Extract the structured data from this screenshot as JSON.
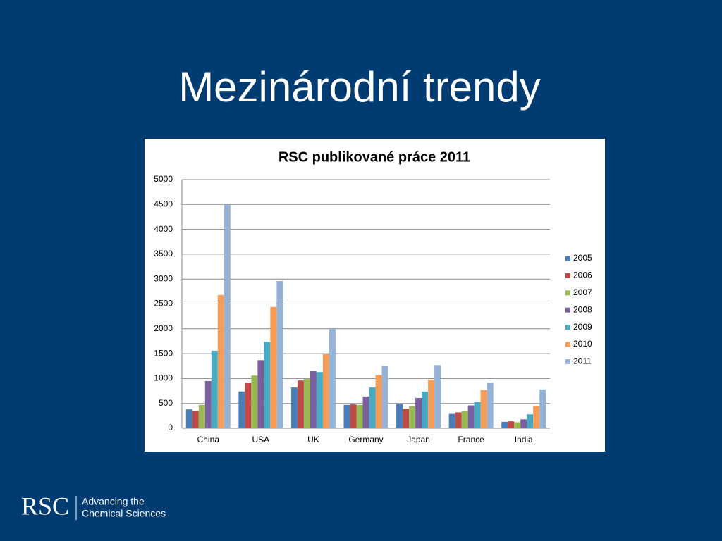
{
  "slide_title": "Mezinárodní trendy",
  "logo": {
    "mark": "RSC",
    "tagline": [
      "Advancing the",
      "Chemical Sciences"
    ]
  },
  "chart_data": {
    "type": "bar",
    "title": "RSC publikované práce 2011",
    "categories": [
      "China",
      "USA",
      "UK",
      "Germany",
      "Japan",
      "France",
      "India"
    ],
    "series": [
      {
        "name": "2005",
        "color": "#4a7ebb",
        "values": [
          380,
          740,
          820,
          470,
          490,
          290,
          130
        ]
      },
      {
        "name": "2006",
        "color": "#be4b48",
        "values": [
          350,
          920,
          960,
          480,
          390,
          320,
          140
        ]
      },
      {
        "name": "2007",
        "color": "#98b954",
        "values": [
          470,
          1060,
          990,
          470,
          440,
          340,
          120
        ]
      },
      {
        "name": "2008",
        "color": "#7d60a0",
        "values": [
          950,
          1370,
          1150,
          640,
          610,
          460,
          180
        ]
      },
      {
        "name": "2009",
        "color": "#46aac4",
        "values": [
          1560,
          1740,
          1130,
          820,
          740,
          530,
          280
        ]
      },
      {
        "name": "2010",
        "color": "#f59d56",
        "values": [
          2680,
          2440,
          1490,
          1070,
          980,
          770,
          450
        ]
      },
      {
        "name": "2011",
        "color": "#95b3d7",
        "values": [
          4500,
          2960,
          2000,
          1250,
          1270,
          920,
          780
        ]
      }
    ],
    "ylim": [
      0,
      5000
    ],
    "yticks": [
      0,
      500,
      1000,
      1500,
      2000,
      2500,
      3000,
      3500,
      4000,
      4500,
      5000
    ],
    "grid": true,
    "legend": "right"
  }
}
